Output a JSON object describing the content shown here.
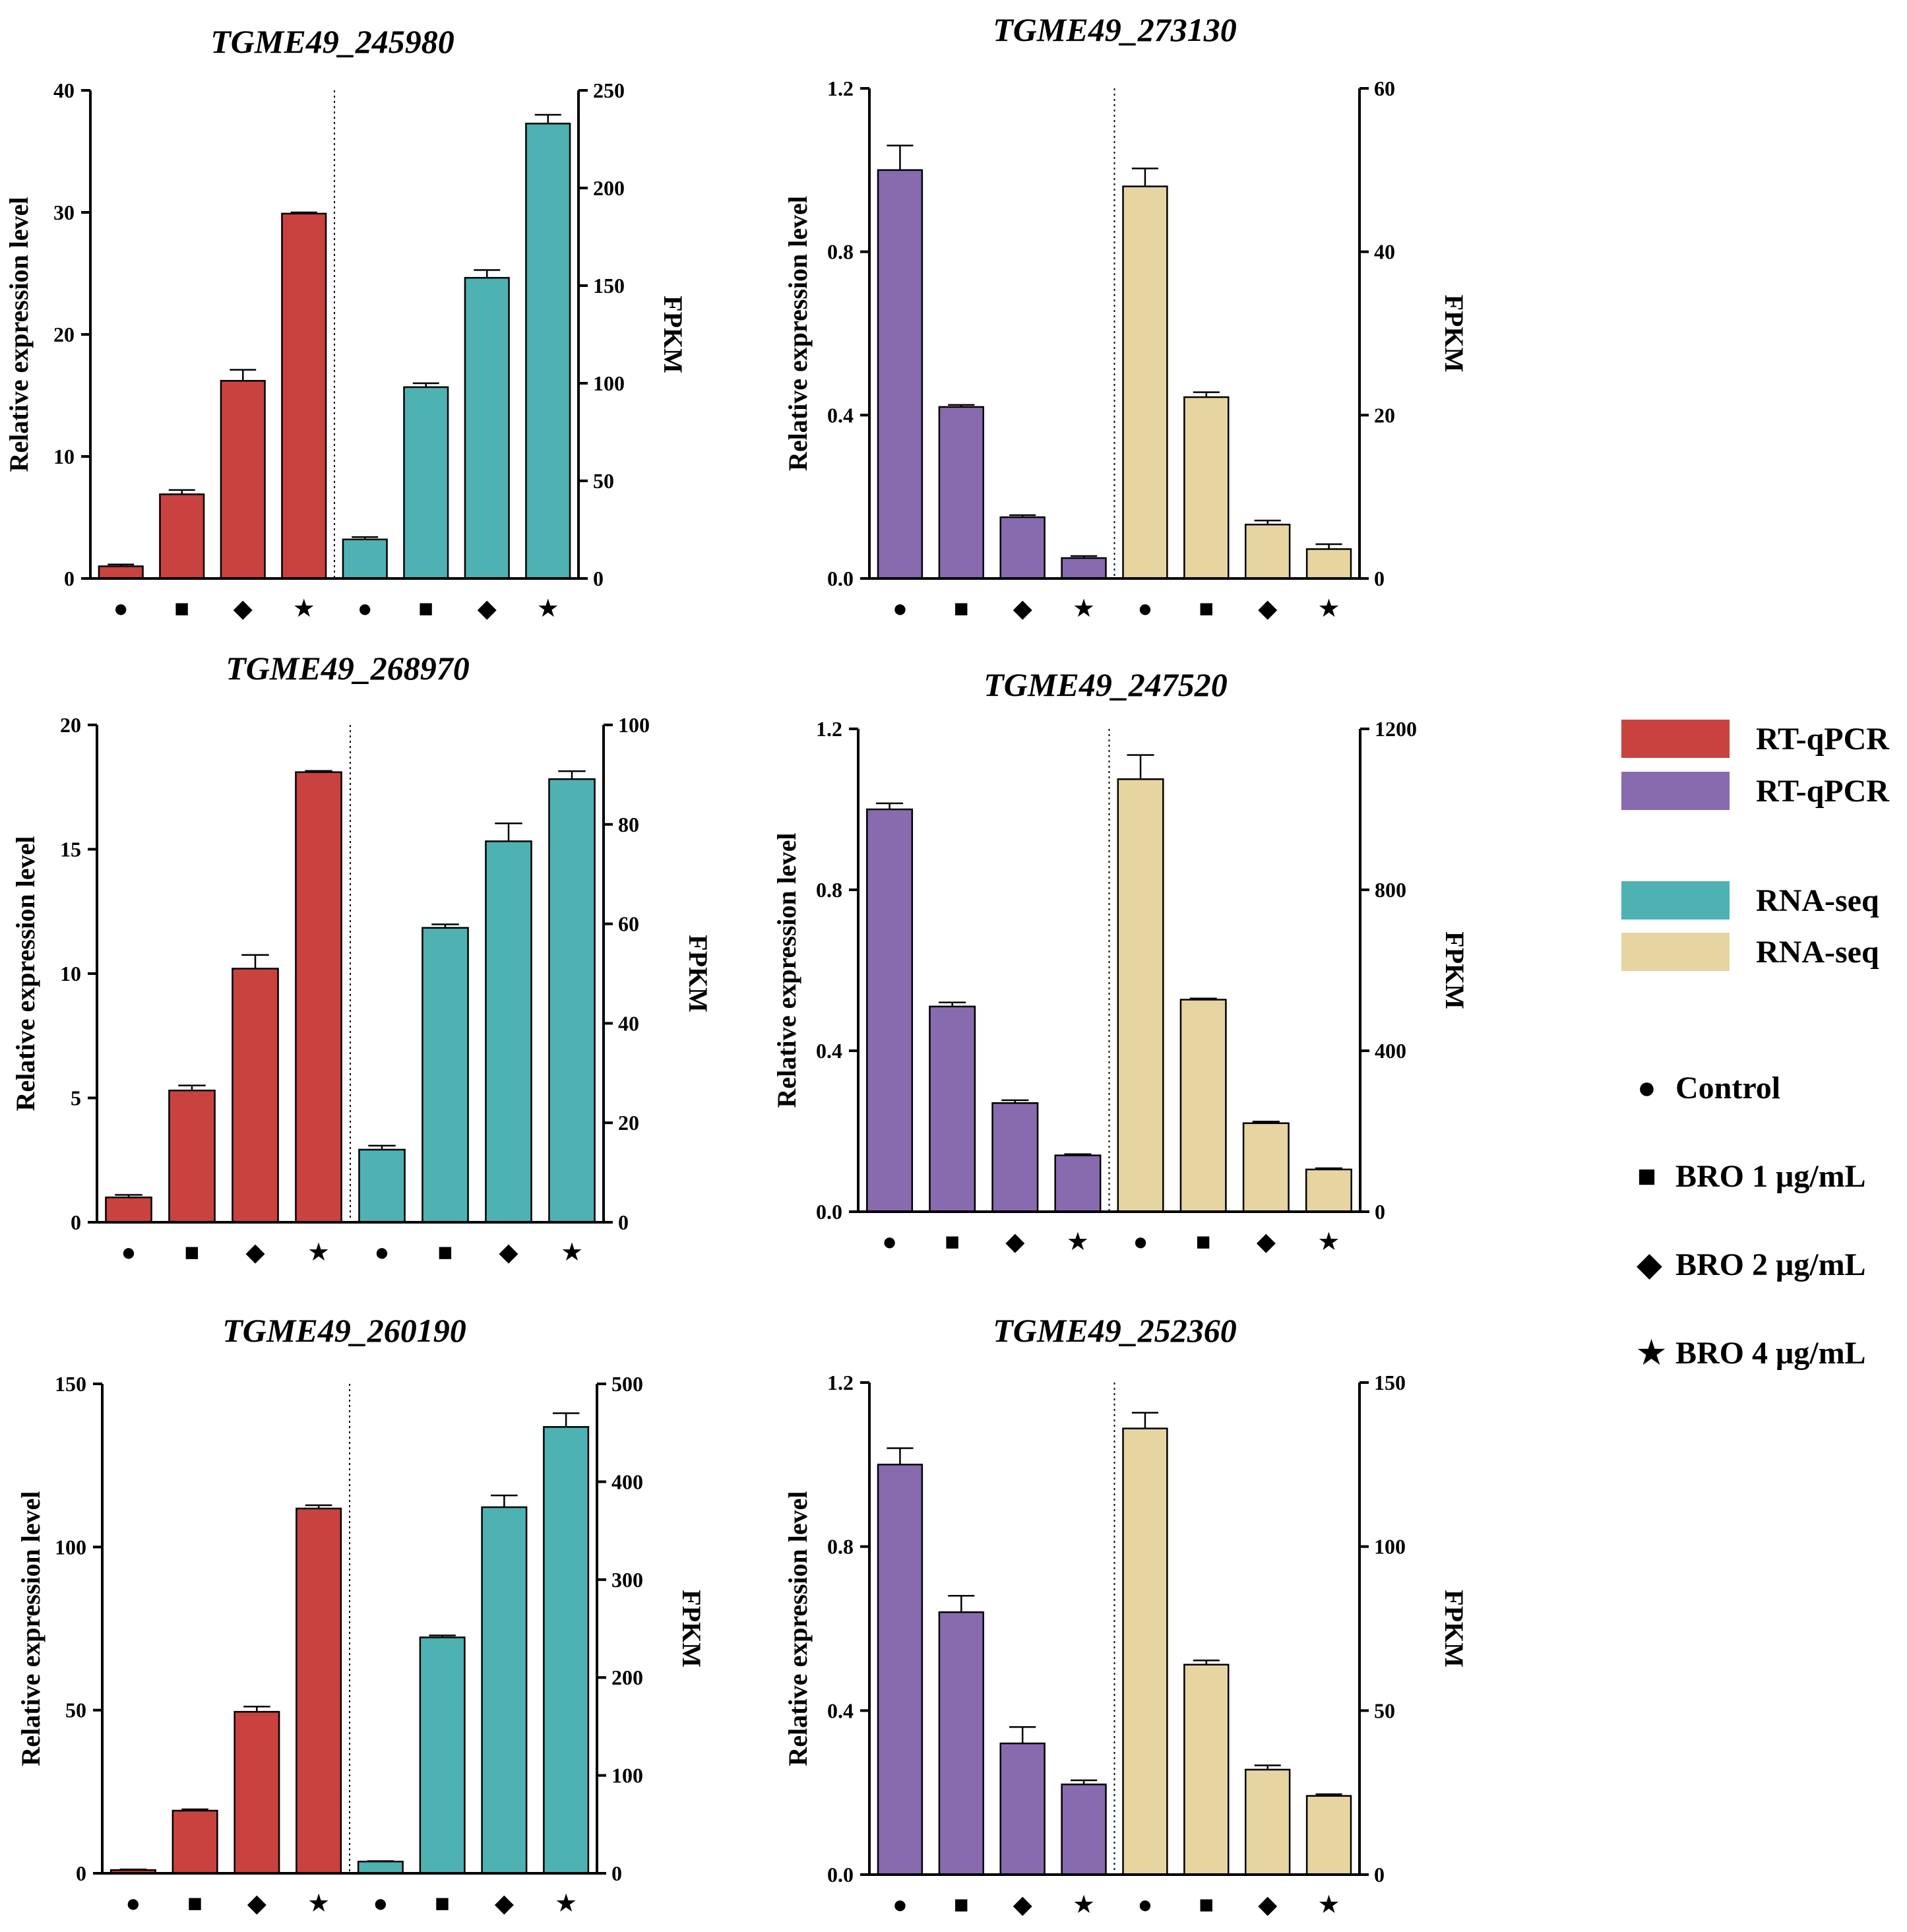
{
  "colors": {
    "rtqpcr_red": "#c9423f",
    "rtqpcr_purple": "#876bae",
    "rnaseq_teal": "#4eb2b3",
    "rnaseq_beige": "#e6d4a1",
    "axis": "#000000"
  },
  "legend": {
    "swatches": [
      {
        "label": "RT-qPCR",
        "color": "#c9423f"
      },
      {
        "label": "RT-qPCR",
        "color": "#876bae"
      },
      {
        "label": "RNA-seq",
        "color": "#4eb2b3"
      },
      {
        "label": "RNA-seq",
        "color": "#e6d4a1"
      }
    ],
    "markers": [
      {
        "glyph": "●",
        "label": "Control"
      },
      {
        "glyph": "■",
        "label": "BRO 1 μg/mL"
      },
      {
        "glyph": "◆",
        "label": "BRO 2 μg/mL"
      },
      {
        "glyph": "★",
        "label": "BRO 4 μg/mL"
      }
    ]
  },
  "chart_data": [
    {
      "type": "bar",
      "title": "TGME49_245980",
      "categories": [
        "Control",
        "BRO 1 μg/mL",
        "BRO 2 μg/mL",
        "BRO 4 μg/mL"
      ],
      "category_glyphs": [
        "●",
        "■",
        "◆",
        "★"
      ],
      "ylabel": "Relative expression level",
      "y2label": "FPKM",
      "ylim": [
        0,
        40
      ],
      "yticks": [
        0,
        10,
        20,
        30,
        40
      ],
      "ytick_labels": [
        "0",
        "10",
        "20",
        "30",
        "40"
      ],
      "y2lim": [
        0,
        250
      ],
      "y2ticks": [
        0,
        50,
        100,
        150,
        200,
        250
      ],
      "y2tick_labels": [
        "0",
        "50",
        "100",
        "150",
        "200",
        "250"
      ],
      "series": [
        {
          "name": "RT-qPCR",
          "axis": "left",
          "color": "#c9423f",
          "values": [
            1.0,
            6.9,
            16.2,
            29.9
          ],
          "errors": [
            0.15,
            0.35,
            0.9,
            0.1
          ]
        },
        {
          "name": "RNA-seq",
          "axis": "right",
          "color": "#4eb2b3",
          "values": [
            20,
            98,
            154,
            233
          ],
          "errors": [
            1.2,
            2.0,
            4.0,
            4.5
          ]
        }
      ]
    },
    {
      "type": "bar",
      "title": "TGME49_273130",
      "categories": [
        "Control",
        "BRO 1 μg/mL",
        "BRO 2 μg/mL",
        "BRO 4 μg/mL"
      ],
      "category_glyphs": [
        "●",
        "■",
        "◆",
        "★"
      ],
      "ylabel": "Relative expression level",
      "y2label": "FPKM",
      "ylim": [
        0,
        1.2
      ],
      "yticks": [
        0,
        0.4,
        0.8,
        1.2
      ],
      "ytick_labels": [
        "0.0",
        "0.4",
        "0.8",
        "1.2"
      ],
      "y2lim": [
        0,
        60
      ],
      "y2ticks": [
        0,
        20,
        40,
        60
      ],
      "y2tick_labels": [
        "0",
        "20",
        "40",
        "60"
      ],
      "series": [
        {
          "name": "RT-qPCR",
          "axis": "left",
          "color": "#876bae",
          "values": [
            1.0,
            0.42,
            0.15,
            0.05
          ],
          "errors": [
            0.06,
            0.005,
            0.005,
            0.005
          ]
        },
        {
          "name": "RNA-seq",
          "axis": "right",
          "color": "#e6d4a1",
          "values": [
            48.0,
            22.2,
            6.6,
            3.6
          ],
          "errors": [
            2.2,
            0.6,
            0.5,
            0.6
          ]
        }
      ]
    },
    {
      "type": "bar",
      "title": "TGME49_268970",
      "categories": [
        "Control",
        "BRO 1 μg/mL",
        "BRO 2 μg/mL",
        "BRO 4 μg/mL"
      ],
      "category_glyphs": [
        "●",
        "■",
        "◆",
        "★"
      ],
      "ylabel": "Relative expression level",
      "y2label": "FPKM",
      "ylim": [
        0,
        20
      ],
      "yticks": [
        0,
        5,
        10,
        15,
        20
      ],
      "ytick_labels": [
        "0",
        "5",
        "10",
        "15",
        "20"
      ],
      "y2lim": [
        0,
        100
      ],
      "y2ticks": [
        0,
        20,
        40,
        60,
        80,
        100
      ],
      "y2tick_labels": [
        "0",
        "20",
        "40",
        "60",
        "80",
        "100"
      ],
      "series": [
        {
          "name": "RT-qPCR",
          "axis": "left",
          "color": "#c9423f",
          "values": [
            1.0,
            5.3,
            10.2,
            18.1
          ],
          "errors": [
            0.1,
            0.2,
            0.55,
            0.05
          ]
        },
        {
          "name": "RNA-seq",
          "axis": "right",
          "color": "#4eb2b3",
          "values": [
            14.6,
            59.2,
            76.6,
            89.1
          ],
          "errors": [
            0.8,
            0.7,
            3.6,
            1.6
          ]
        }
      ]
    },
    {
      "type": "bar",
      "title": "TGME49_247520",
      "categories": [
        "Control",
        "BRO 1 μg/mL",
        "BRO 2 μg/mL",
        "BRO 4 μg/mL"
      ],
      "category_glyphs": [
        "●",
        "■",
        "◆",
        "★"
      ],
      "ylabel": "Relative expression level",
      "y2label": "FPKM",
      "ylim": [
        0,
        1.2
      ],
      "yticks": [
        0,
        0.4,
        0.8,
        1.2
      ],
      "ytick_labels": [
        "0.0",
        "0.4",
        "0.8",
        "1.2"
      ],
      "y2lim": [
        0,
        1200
      ],
      "y2ticks": [
        0,
        400,
        800,
        1200
      ],
      "y2tick_labels": [
        "0",
        "400",
        "800",
        "1200"
      ],
      "series": [
        {
          "name": "RT-qPCR",
          "axis": "left",
          "color": "#876bae",
          "values": [
            1.0,
            0.51,
            0.27,
            0.14
          ],
          "errors": [
            0.015,
            0.01,
            0.007,
            0.003
          ]
        },
        {
          "name": "RNA-seq",
          "axis": "right",
          "color": "#e6d4a1",
          "values": [
            1075,
            527,
            220,
            105
          ],
          "errors": [
            60,
            3,
            4,
            3
          ]
        }
      ]
    },
    {
      "type": "bar",
      "title": "TGME49_260190",
      "categories": [
        "Control",
        "BRO 1 μg/mL",
        "BRO 2 μg/mL",
        "BRO 4 μg/mL"
      ],
      "category_glyphs": [
        "●",
        "■",
        "◆",
        "★"
      ],
      "ylabel": "Relative expression level",
      "y2label": "FPKM",
      "ylim": [
        0,
        150
      ],
      "yticks": [
        0,
        50,
        100,
        150
      ],
      "ytick_labels": [
        "0",
        "50",
        "100",
        "150"
      ],
      "y2lim": [
        0,
        500
      ],
      "y2ticks": [
        0,
        100,
        200,
        300,
        400,
        500
      ],
      "y2tick_labels": [
        "0",
        "100",
        "200",
        "300",
        "400",
        "500"
      ],
      "series": [
        {
          "name": "RT-qPCR",
          "axis": "left",
          "color": "#c9423f",
          "values": [
            1.0,
            19.2,
            49.5,
            111.8
          ],
          "errors": [
            0.2,
            0.4,
            1.6,
            1.0
          ]
        },
        {
          "name": "RNA-seq",
          "axis": "right",
          "color": "#4eb2b3",
          "values": [
            12,
            241,
            374,
            456
          ],
          "errors": [
            0.5,
            2,
            12,
            14
          ]
        }
      ]
    },
    {
      "type": "bar",
      "title": "TGME49_252360",
      "categories": [
        "Control",
        "BRO 1 μg/mL",
        "BRO 2 μg/mL",
        "BRO 4 μg/mL"
      ],
      "category_glyphs": [
        "●",
        "■",
        "◆",
        "★"
      ],
      "ylabel": "Relative expression level",
      "y2label": "FPKM",
      "ylim": [
        0,
        1.2
      ],
      "yticks": [
        0,
        0.4,
        0.8,
        1.2
      ],
      "ytick_labels": [
        "0.0",
        "0.4",
        "0.8",
        "1.2"
      ],
      "y2lim": [
        0,
        150
      ],
      "y2ticks": [
        0,
        50,
        100,
        150
      ],
      "y2tick_labels": [
        "0",
        "50",
        "100",
        "150"
      ],
      "series": [
        {
          "name": "RT-qPCR",
          "axis": "left",
          "color": "#876bae",
          "values": [
            1.0,
            0.64,
            0.32,
            0.22
          ],
          "errors": [
            0.04,
            0.04,
            0.04,
            0.01
          ]
        },
        {
          "name": "RNA-seq",
          "axis": "right",
          "color": "#e6d4a1",
          "values": [
            136,
            64,
            32,
            24
          ],
          "errors": [
            4.8,
            1.3,
            1.3,
            0.5
          ]
        }
      ]
    }
  ]
}
